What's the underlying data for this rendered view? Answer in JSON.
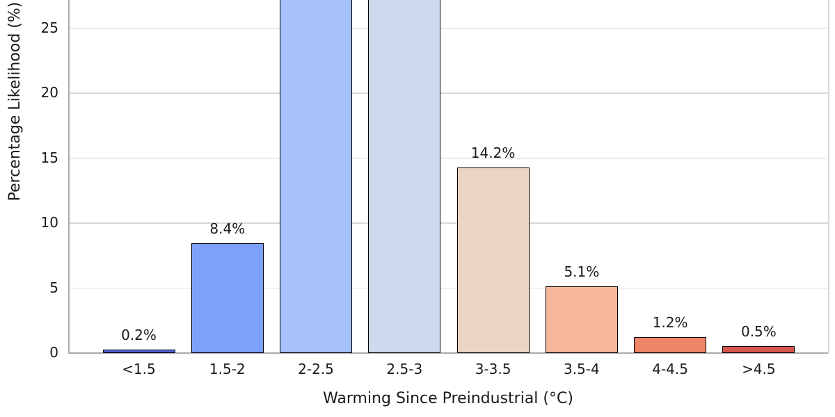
{
  "chart_data": {
    "type": "bar",
    "xlabel": "Warming Since Preindustrial (°C)",
    "ylabel": "Percentage Likelihood (%)",
    "categories": [
      "<1.5",
      "1.5-2",
      "2-2.5",
      "2.5-3",
      "3-3.5",
      "3.5-4",
      "4-4.5",
      ">4.5"
    ],
    "values": [
      0.2,
      8.4,
      null,
      null,
      14.2,
      5.1,
      1.2,
      0.5
    ],
    "bar_labels": [
      "0.2%",
      "8.4%",
      "",
      "",
      "14.2%",
      "5.1%",
      "1.2%",
      "0.5%"
    ],
    "truncated": [
      false,
      false,
      true,
      true,
      false,
      false,
      false,
      false
    ],
    "yticks": [
      0,
      5,
      10,
      15,
      20,
      25
    ],
    "ylim_visible": [
      0,
      27.1
    ],
    "grid_axis": "y",
    "legend": null,
    "bar_colors": [
      "#4a63d3",
      "#7da0fa",
      "#a7c2fa",
      "#cdd9ec",
      "#ead5c5",
      "#f6b69a",
      "#ee8468",
      "#d5544b"
    ],
    "bar_edge_color": "#000000",
    "grid_color": "#d8d8d8",
    "spine_color": "#ababab",
    "text_color": "#1a1a1a",
    "background_color": "#ffffff"
  }
}
